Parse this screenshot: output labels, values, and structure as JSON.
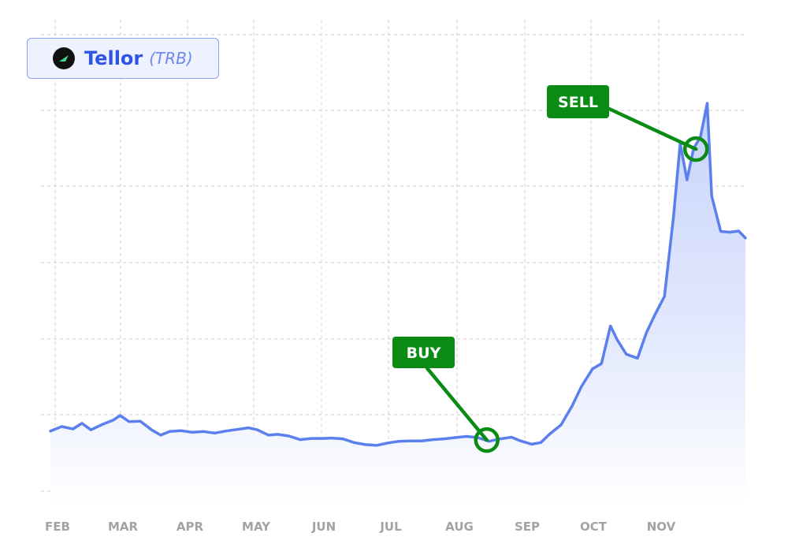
{
  "header": {
    "name": "Tellor",
    "ticker": "(TRB)",
    "icon": "tellor-logo-icon"
  },
  "colors": {
    "line": "#5b7fed",
    "area_top": "#c7d3fb",
    "callout": "#0a8c14",
    "grid": "#cfcfcf",
    "tick": "#a3a3a3"
  },
  "chart_data": {
    "type": "line",
    "title": "",
    "xlabel": "",
    "ylabel": "",
    "x_ticks": [
      "FEB",
      "MAR",
      "APR",
      "MAY",
      "JUN",
      "JUL",
      "AUG",
      "SEP",
      "OCT",
      "NOV"
    ],
    "ylim": [
      0,
      100
    ],
    "grid": true,
    "area_fill": true,
    "series": [
      {
        "points": [
          [
            "Jan 29",
            14.5
          ],
          [
            "Feb 03",
            15.6
          ],
          [
            "Feb 08",
            15.0
          ],
          [
            "Feb 12",
            16.4
          ],
          [
            "Feb 16",
            14.8
          ],
          [
            "Feb 21",
            16.1
          ],
          [
            "Feb 26",
            17.2
          ],
          [
            "Mar 01",
            18.3
          ],
          [
            "Mar 05",
            16.8
          ],
          [
            "Mar 10",
            16.9
          ],
          [
            "Mar 15",
            14.8
          ],
          [
            "Mar 19",
            13.5
          ],
          [
            "Mar 23",
            14.4
          ],
          [
            "Mar 28",
            14.6
          ],
          [
            "Apr 02",
            14.2
          ],
          [
            "Apr 07",
            14.4
          ],
          [
            "Apr 12",
            14.0
          ],
          [
            "Apr 17",
            14.5
          ],
          [
            "Apr 22",
            14.9
          ],
          [
            "Apr 27",
            15.3
          ],
          [
            "May 01",
            14.8
          ],
          [
            "May 06",
            13.5
          ],
          [
            "May 10",
            13.7
          ],
          [
            "May 15",
            13.3
          ],
          [
            "May 20",
            12.4
          ],
          [
            "May 25",
            12.7
          ],
          [
            "May 30",
            12.7
          ],
          [
            "Jun 03",
            12.8
          ],
          [
            "Jun 08",
            12.6
          ],
          [
            "Jun 13",
            11.7
          ],
          [
            "Jun 18",
            11.2
          ],
          [
            "Jun 23",
            11.0
          ],
          [
            "Jun 28",
            11.6
          ],
          [
            "Jul 03",
            12.0
          ],
          [
            "Jul 08",
            12.1
          ],
          [
            "Jul 13",
            12.1
          ],
          [
            "Jul 18",
            12.4
          ],
          [
            "Jul 23",
            12.6
          ],
          [
            "Jul 28",
            12.9
          ],
          [
            "Aug 02",
            13.2
          ],
          [
            "Aug 07",
            12.9
          ],
          [
            "Aug 12",
            12.0
          ],
          [
            "Aug 17",
            12.6
          ],
          [
            "Aug 22",
            13.0
          ],
          [
            "Aug 26",
            12.1
          ],
          [
            "Aug 31",
            11.3
          ],
          [
            "Sep 04",
            11.7
          ],
          [
            "Sep 08",
            13.8
          ],
          [
            "Sep 13",
            16.0
          ],
          [
            "Sep 18",
            20.7
          ],
          [
            "Sep 22",
            25.3
          ],
          [
            "Sep 27",
            29.7
          ],
          [
            "Oct 01",
            31.0
          ],
          [
            "Oct 05",
            40.2
          ],
          [
            "Oct 08",
            36.8
          ],
          [
            "Oct 12",
            33.3
          ],
          [
            "Oct 17",
            32.3
          ],
          [
            "Oct 21",
            38.6
          ],
          [
            "Oct 25",
            43.2
          ],
          [
            "Oct 29",
            47.4
          ],
          [
            "Nov 02",
            66.9
          ],
          [
            "Nov 05",
            84.8
          ],
          [
            "Nov 08",
            75.9
          ],
          [
            "Nov 11",
            83.6
          ],
          [
            "Nov 14",
            86.4
          ],
          [
            "Nov 17",
            94.6
          ],
          [
            "Nov 19",
            71.9
          ],
          [
            "Nov 23",
            63.3
          ],
          [
            "Nov 27",
            63.1
          ],
          [
            "Dec 01",
            63.4
          ],
          [
            "Dec 04",
            61.7
          ]
        ]
      }
    ],
    "annotations": [
      {
        "label": "BUY",
        "at": "Aug 11",
        "value": 12.3
      },
      {
        "label": "SELL",
        "at": "Nov 12",
        "value": 83.4
      }
    ]
  }
}
